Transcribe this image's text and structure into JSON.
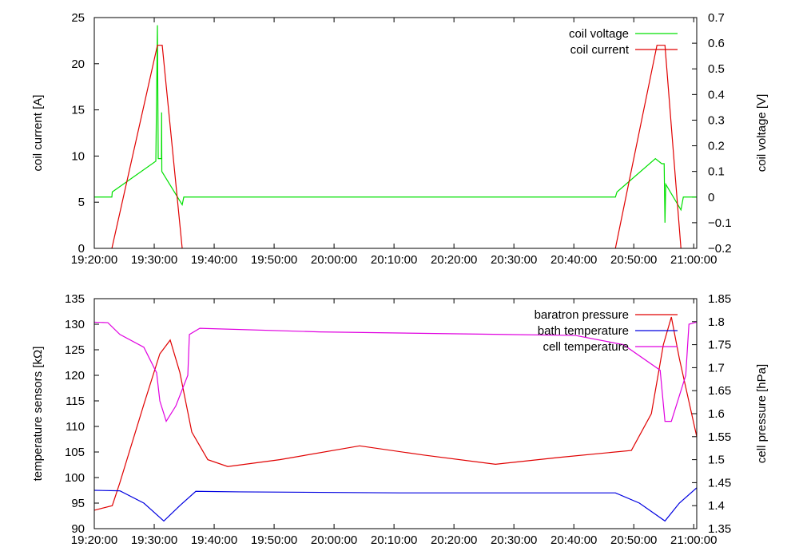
{
  "chart_data": [
    {
      "type": "line",
      "y_label": "coil current [A]",
      "y2_label": "coil voltage [V]",
      "xlim": [
        "19:20:00",
        "21:00:30"
      ],
      "xticks": [
        "19:20:00",
        "19:30:00",
        "19:40:00",
        "19:50:00",
        "20:00:00",
        "20:10:00",
        "20:20:00",
        "20:30:00",
        "20:40:00",
        "20:50:00",
        "21:00:00"
      ],
      "ylim": [
        0,
        25
      ],
      "yticks": [
        0,
        5,
        10,
        15,
        20,
        25
      ],
      "y2lim": [
        -0.2,
        0.7
      ],
      "y2ticks": [
        {
          "value": -0.2,
          "label": "−0.2"
        },
        {
          "value": -0.1,
          "label": "−0.1"
        },
        0,
        0.1,
        0.2,
        0.3,
        0.4,
        0.5,
        0.6,
        0.7
      ],
      "legend": "upper right",
      "series": [
        {
          "name": "coil voltage",
          "color": "#00e000",
          "axis": "y2",
          "x": [
            "19:20:00",
            "19:22:56",
            "19:23:00",
            "19:30:16",
            "19:30:32",
            "19:30:40",
            "19:31:12",
            "19:31:14",
            "19:31:16",
            "19:34:40",
            "19:34:56",
            "20:46:56",
            "20:47:12",
            "20:53:36",
            "20:54:40",
            "20:55:04",
            "20:55:12",
            "20:55:20",
            "20:57:52",
            "20:58:16",
            "21:00:30"
          ],
          "values": [
            0,
            0,
            0.02,
            0.14,
            0.67,
            0.15,
            0.15,
            0.33,
            0.1,
            -0.03,
            0,
            0,
            0.02,
            0.15,
            0.13,
            0.13,
            -0.1,
            0.05,
            -0.05,
            0,
            0
          ]
        },
        {
          "name": "coil current",
          "color": "#e00000",
          "axis": "y",
          "x": [
            "19:22:56",
            "19:30:32",
            "19:31:20",
            "19:34:40",
            "19:40:00",
            "20:46:56",
            "20:53:52",
            "20:55:12",
            "20:57:52"
          ],
          "values": [
            0,
            22,
            22,
            0,
            null,
            0,
            22,
            22,
            0
          ]
        }
      ]
    },
    {
      "type": "line",
      "y_label": "temperature sensors [kΩ]",
      "y2_label": "cell pressure [hPa]",
      "xlim": [
        "19:20:00",
        "21:00:30"
      ],
      "xticks": [
        "19:20:00",
        "19:30:00",
        "19:40:00",
        "19:50:00",
        "20:00:00",
        "20:10:00",
        "20:20:00",
        "20:30:00",
        "20:40:00",
        "20:50:00",
        "21:00:00"
      ],
      "ylim": [
        90,
        135
      ],
      "yticks": [
        90,
        95,
        100,
        105,
        110,
        115,
        120,
        125,
        130,
        135
      ],
      "y2lim": [
        1.35,
        1.85
      ],
      "y2ticks": [
        1.35,
        1.4,
        1.45,
        1.5,
        1.55,
        1.6,
        1.65,
        1.7,
        1.75,
        1.8,
        1.85
      ],
      "legend": "upper right",
      "series": [
        {
          "name": "baratron pressure",
          "color": "#e00000",
          "axis": "y2",
          "x": [
            "19:20:00",
            "19:23:00",
            "19:24:16",
            "19:28:16",
            "19:30:56",
            "19:32:40",
            "19:34:16",
            "19:36:16",
            "19:38:56",
            "19:42:16",
            "19:50:56",
            "20:04:16",
            "20:14:56",
            "20:26:56",
            "20:37:36",
            "20:49:36",
            "20:52:56",
            "20:54:56",
            "20:56:16",
            "20:57:36",
            "21:00:30"
          ],
          "values": [
            1.39,
            1.4,
            1.45,
            1.62,
            1.73,
            1.76,
            1.69,
            1.56,
            1.5,
            1.485,
            1.5,
            1.53,
            1.51,
            1.49,
            1.505,
            1.52,
            1.6,
            1.75,
            1.81,
            1.72,
            1.55
          ]
        },
        {
          "name": "bath temperature",
          "color": "#0000e0",
          "axis": "y",
          "x": [
            "19:20:00",
            "19:24:16",
            "19:28:16",
            "19:31:36",
            "19:34:16",
            "19:36:56",
            "19:44:16",
            "20:10:56",
            "20:46:56",
            "20:50:56",
            "20:55:12",
            "20:57:36",
            "21:00:30"
          ],
          "values": [
            97.5,
            97.4,
            95,
            91.5,
            94.5,
            97.3,
            97.2,
            97,
            97,
            95,
            91.5,
            95,
            98
          ]
        },
        {
          "name": "cell temperature",
          "color": "#e000e0",
          "axis": "y",
          "x": [
            "19:20:00",
            "19:22:16",
            "19:24:16",
            "19:28:16",
            "19:30:24",
            "19:30:56",
            "19:32:00",
            "19:33:36",
            "19:35:36",
            "19:35:52",
            "19:37:36",
            "19:57:36",
            "20:40:16",
            "20:48:16",
            "20:54:24",
            "20:55:12",
            "20:56:16",
            "20:58:40",
            "20:59:12",
            "21:00:30"
          ],
          "values": [
            130.4,
            130.3,
            128,
            125.5,
            120.5,
            115,
            111,
            114,
            120,
            128,
            129.2,
            128.5,
            127.8,
            126,
            121,
            111,
            111,
            120,
            130,
            130.4
          ]
        }
      ]
    }
  ]
}
